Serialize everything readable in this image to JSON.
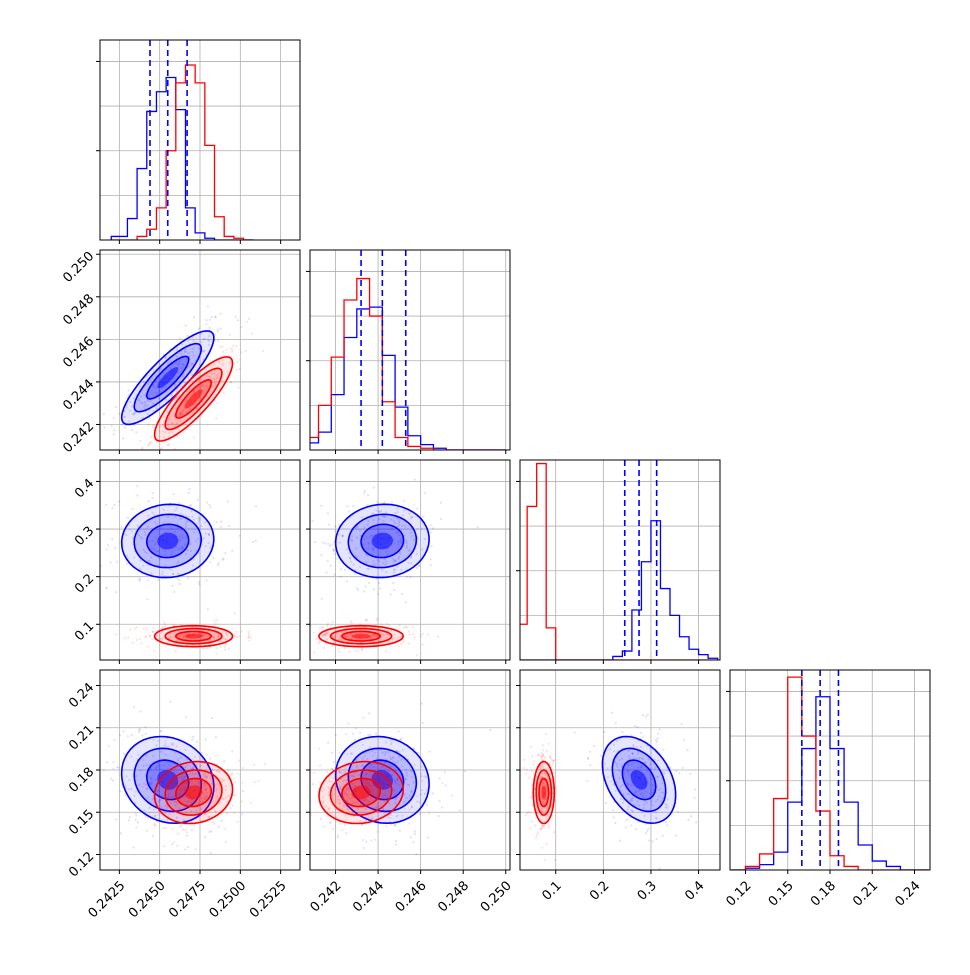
{
  "chart_data": {
    "type": "corner",
    "colors": {
      "a": "#0000ff",
      "b": "#ff0000",
      "quantile_line": "#0000ff",
      "grid": "#b0b0b0"
    },
    "grid": true,
    "parameters": [
      {
        "ticks": [
          0.2425,
          0.245,
          0.2475,
          0.25,
          0.2525
        ],
        "tick_labels": [
          "0.2425",
          "0.2450",
          "0.2475",
          "0.2500",
          "0.2525"
        ],
        "range": [
          0.2413,
          0.2537
        ]
      },
      {
        "ticks": [
          0.242,
          0.244,
          0.246,
          0.248,
          0.25
        ],
        "tick_labels": [
          "0.242",
          "0.244",
          "0.246",
          "0.248",
          "0.250"
        ],
        "range": [
          0.2408,
          0.2502
        ]
      },
      {
        "ticks": [
          0.1,
          0.2,
          0.3,
          0.4
        ],
        "tick_labels": [
          "0.1",
          "0.2",
          "0.3",
          "0.4"
        ],
        "range": [
          0.025,
          0.445
        ]
      },
      {
        "ticks": [
          0.12,
          0.15,
          0.18,
          0.21,
          0.24
        ],
        "tick_labels": [
          "0.12",
          "0.15",
          "0.18",
          "0.21",
          "0.24"
        ],
        "range": [
          0.109,
          0.251
        ]
      }
    ],
    "series": [
      {
        "color": "#0000ff",
        "means": [
          0.2455,
          0.2442,
          0.275,
          0.173
        ],
        "sigmas": [
          0.0013,
          0.001,
          0.035,
          0.014
        ],
        "correlations": [
          [
            1,
            0.85,
            0.05,
            -0.15
          ],
          [
            0.85,
            1,
            0.05,
            -0.1
          ],
          [
            0.05,
            0.05,
            1,
            -0.35
          ],
          [
            -0.15,
            -0.1,
            -0.35,
            1
          ]
        ],
        "quantiles": [
          [
            0.2444,
            0.2455,
            0.2467
          ],
          [
            0.2432,
            0.2442,
            0.2453
          ],
          [
            0.245,
            0.275,
            0.312
          ],
          [
            0.16,
            0.173,
            0.186
          ]
        ]
      },
      {
        "color": "#ff0000",
        "means": [
          0.2471,
          0.2432,
          0.075,
          0.164
        ],
        "sigmas": [
          0.0011,
          0.0009,
          0.01,
          0.01
        ],
        "correlations": [
          [
            1,
            0.85,
            0.0,
            0.1
          ],
          [
            0.85,
            1,
            0.0,
            0.1
          ],
          [
            0.0,
            0.0,
            1,
            0.0
          ],
          [
            0.1,
            0.1,
            0.0,
            1
          ]
        ],
        "quantiles": []
      }
    ],
    "histograms": [
      {
        "edges": [
          0.242,
          0.243,
          0.2436,
          0.2442,
          0.2448,
          0.2454,
          0.246,
          0.2466,
          0.2472,
          0.2478,
          0.2484,
          0.249,
          0.2496,
          0.2502,
          0.2508
        ],
        "counts": [
          [
            0.02,
            0.12,
            0.4,
            0.72,
            0.83,
            0.91,
            0.73,
            0.18,
            0.04,
            0.01,
            0,
            0,
            0,
            0
          ],
          [
            0,
            0,
            0.02,
            0.06,
            0.18,
            0.5,
            0.88,
            0.98,
            0.88,
            0.53,
            0.13,
            0.02,
            0.01,
            0
          ]
        ]
      },
      {
        "edges": [
          0.24,
          0.2406,
          0.2412,
          0.2418,
          0.2424,
          0.243,
          0.2436,
          0.2442,
          0.2448,
          0.2454,
          0.246,
          0.2466,
          0.2472,
          0.2478,
          0.2484,
          0.249,
          0.25
        ],
        "counts": [
          [
            0.01,
            0.04,
            0.1,
            0.31,
            0.63,
            0.79,
            0.8,
            0.53,
            0.24,
            0.08,
            0.03,
            0.01,
            0,
            0,
            0,
            0
          ],
          [
            0.01,
            0.07,
            0.25,
            0.52,
            0.84,
            0.96,
            0.75,
            0.27,
            0.07,
            0.02,
            0.01,
            0,
            0,
            0,
            0,
            0
          ]
        ]
      },
      {
        "edges": [
          0.02,
          0.04,
          0.06,
          0.08,
          0.1,
          0.12,
          0.14,
          0.16,
          0.18,
          0.2,
          0.22,
          0.24,
          0.26,
          0.28,
          0.3,
          0.32,
          0.34,
          0.36,
          0.38,
          0.4,
          0.42,
          0.44
        ],
        "counts": [
          [
            0,
            0,
            0,
            0,
            0,
            0,
            0,
            0,
            0,
            0,
            0.02,
            0.05,
            0.28,
            0.55,
            0.78,
            0.4,
            0.25,
            0.13,
            0.06,
            0.03,
            0.01
          ],
          [
            0.2,
            0.86,
            1.1,
            0.18,
            0,
            0,
            0,
            0,
            0,
            0,
            0,
            0,
            0,
            0,
            0,
            0,
            0,
            0,
            0,
            0,
            0
          ]
        ]
      },
      {
        "edges": [
          0.11,
          0.12,
          0.13,
          0.14,
          0.15,
          0.16,
          0.17,
          0.18,
          0.19,
          0.2,
          0.21,
          0.22,
          0.23,
          0.24,
          0.25
        ],
        "counts": [
          [
            0,
            0.01,
            0.03,
            0.1,
            0.38,
            0.68,
            0.97,
            0.68,
            0.38,
            0.14,
            0.05,
            0.02,
            0,
            0
          ],
          [
            0,
            0.02,
            0.09,
            0.4,
            1.08,
            0.75,
            0.33,
            0.08,
            0.02,
            0,
            0,
            0,
            0,
            0
          ]
        ]
      }
    ]
  }
}
